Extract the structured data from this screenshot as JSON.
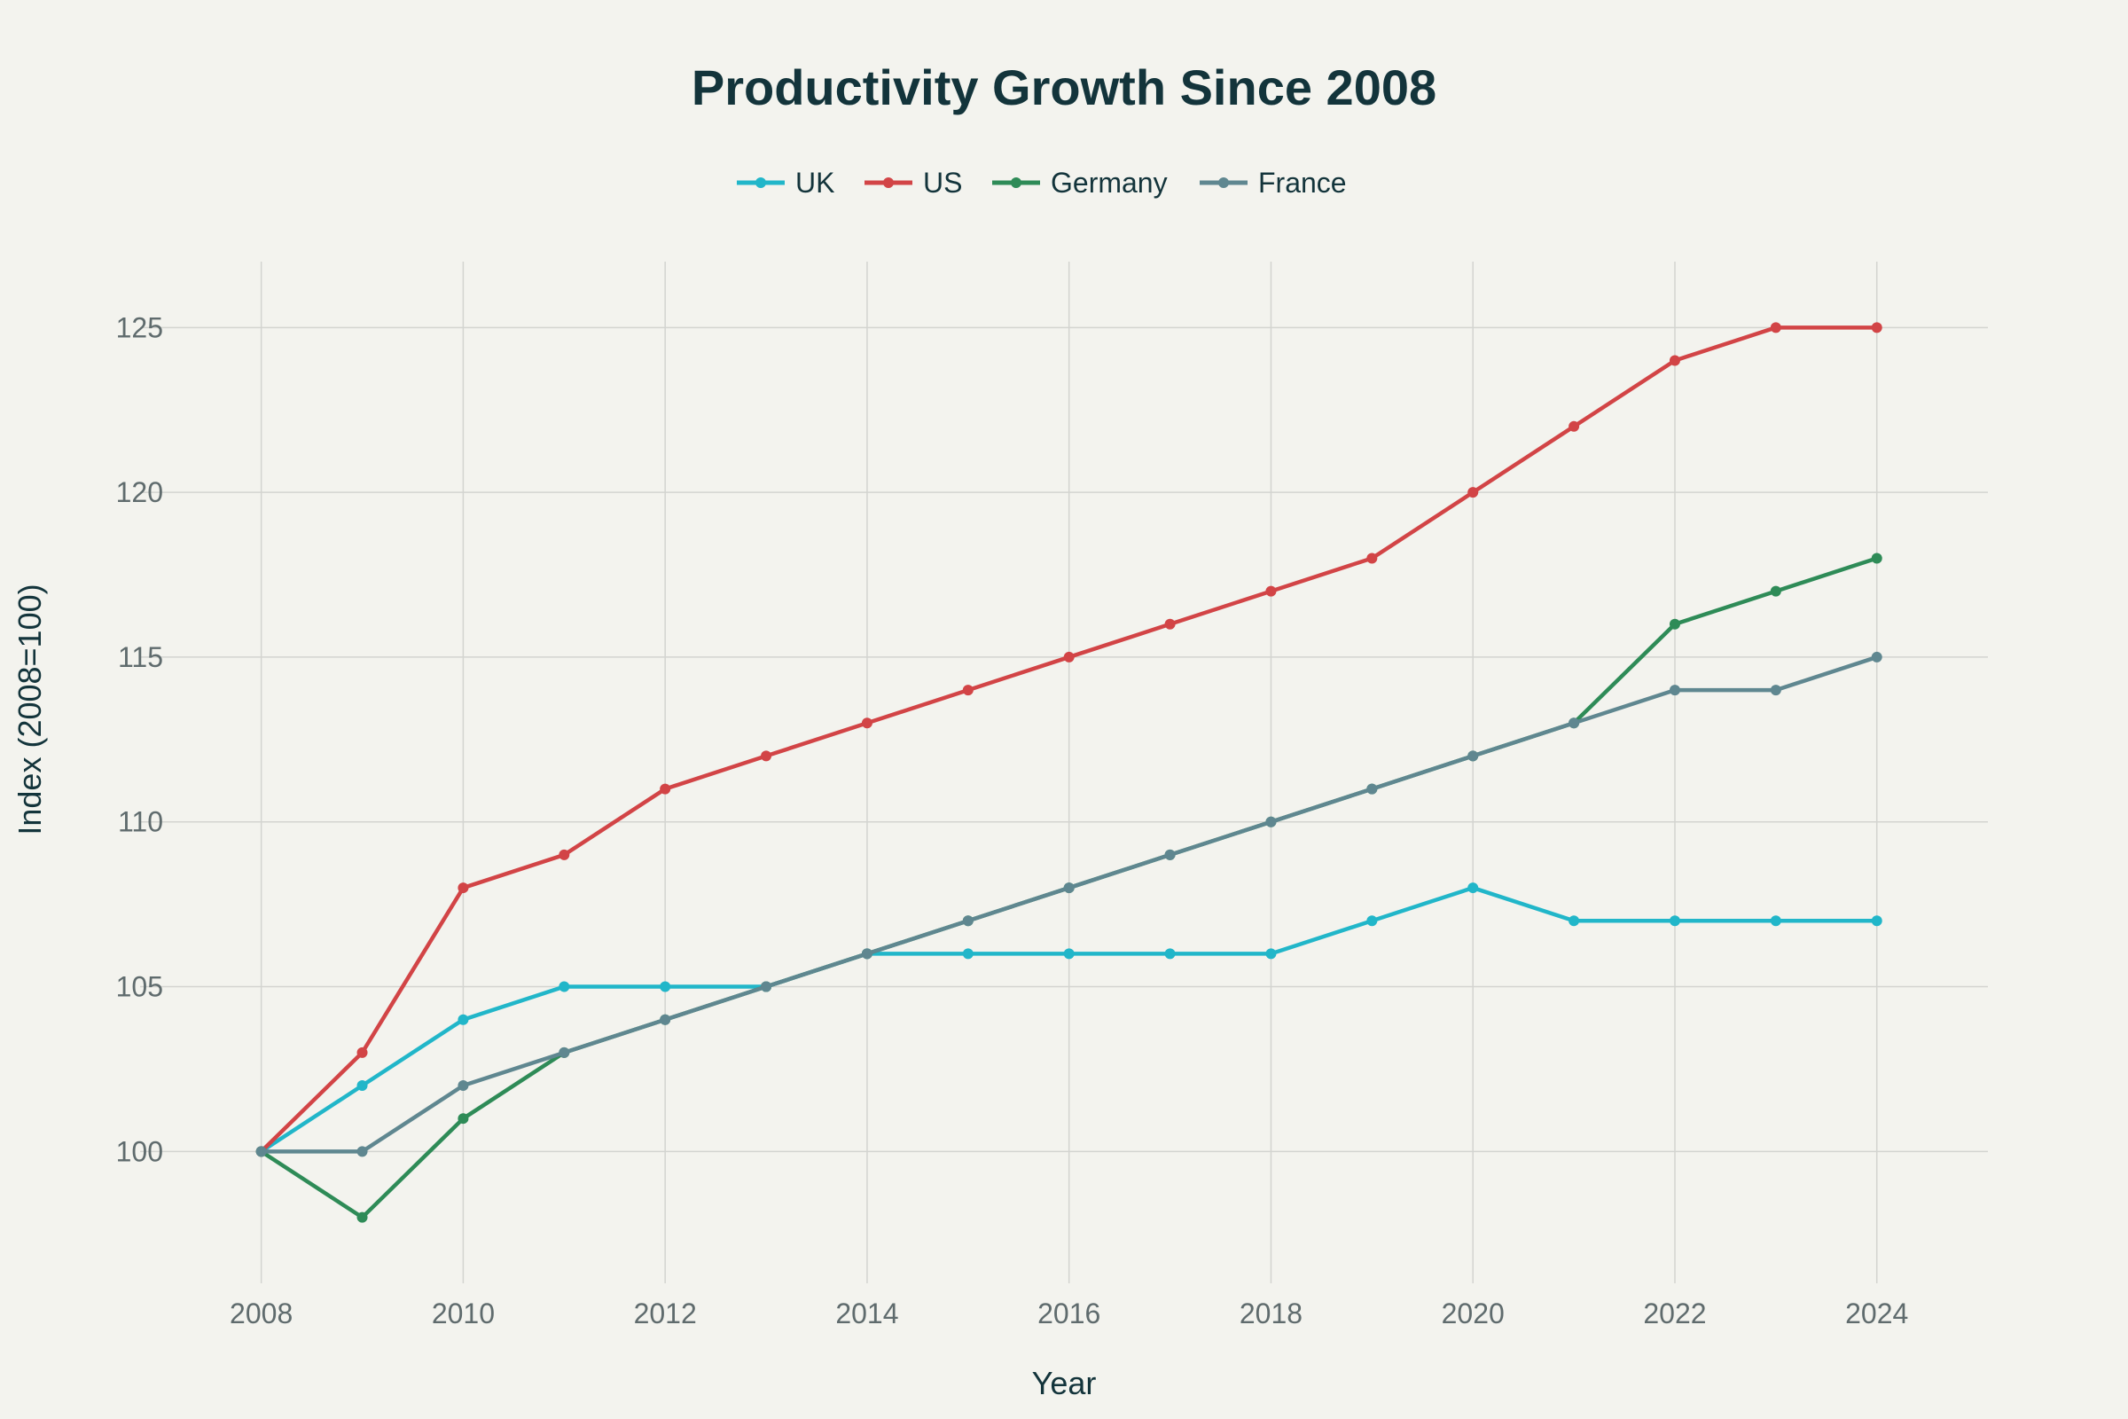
{
  "chart_data": {
    "type": "line",
    "title": "Productivity Growth Since 2008",
    "xlabel": "Year",
    "ylabel": "Index (2008=100)",
    "x": [
      2008,
      2009,
      2010,
      2011,
      2012,
      2013,
      2014,
      2015,
      2016,
      2017,
      2018,
      2019,
      2020,
      2021,
      2022,
      2023,
      2024
    ],
    "xlim": [
      2006.8,
      2025.1
    ],
    "ylim": [
      96,
      127
    ],
    "xticks": [
      2008,
      2010,
      2012,
      2014,
      2016,
      2018,
      2020,
      2022,
      2024
    ],
    "yticks": [
      100,
      105,
      110,
      115,
      120,
      125
    ],
    "grid": true,
    "legend_position": "top-center",
    "series": [
      {
        "name": "UK",
        "color": "#21b6c9",
        "values": [
          100,
          102,
          104,
          105,
          105,
          105,
          106,
          106,
          106,
          106,
          106,
          107,
          108,
          107,
          107,
          107,
          107
        ]
      },
      {
        "name": "US",
        "color": "#d24446",
        "values": [
          100,
          103,
          108,
          109,
          111,
          112,
          113,
          114,
          115,
          116,
          117,
          118,
          120,
          122,
          124,
          125,
          125
        ]
      },
      {
        "name": "Germany",
        "color": "#2e8b57",
        "values": [
          100,
          98,
          101,
          103,
          104,
          105,
          106,
          107,
          108,
          109,
          110,
          111,
          112,
          113,
          116,
          117,
          118
        ]
      },
      {
        "name": "France",
        "color": "#5f8790",
        "values": [
          100,
          100,
          102,
          103,
          104,
          105,
          106,
          107,
          108,
          109,
          110,
          111,
          112,
          113,
          114,
          114,
          115
        ]
      }
    ]
  }
}
